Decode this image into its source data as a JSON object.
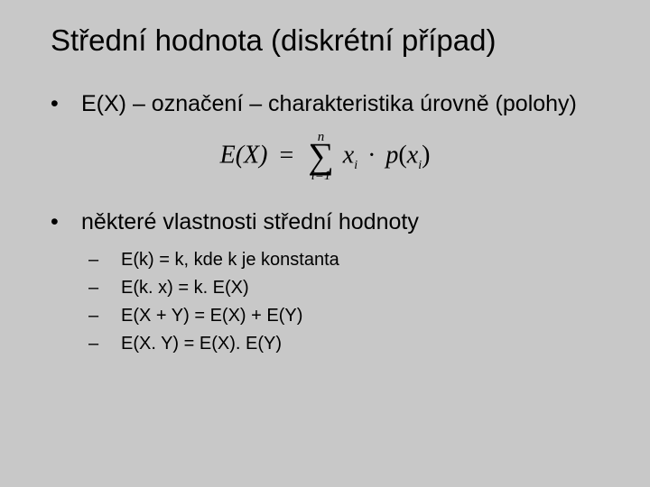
{
  "background_color": "#c8c8c8",
  "text_color": "#000000",
  "title": "Střední hodnota (diskrétní případ)",
  "title_fontsize": 33,
  "body_fontsize": 25,
  "sub_fontsize": 20,
  "bullets": [
    {
      "text": "E(X) – označení – charakteristika úrovně (polohy)"
    },
    {
      "text": "některé vlastnosti střední hodnoty"
    }
  ],
  "formula": {
    "left": "E(X)",
    "eq": "=",
    "sum_top": "n",
    "sum_symbol": "∑",
    "sum_bottom": "i=1",
    "term_x": "x",
    "term_x_sub": "i",
    "dot": "·",
    "term_p": "p",
    "paren_l": "(",
    "term_px": "x",
    "term_px_sub": "i",
    "paren_r": ")"
  },
  "sub_items": [
    "E(k) = k, kde k je konstanta",
    "E(k. x) = k. E(X)",
    "E(X + Y) = E(X) + E(Y)",
    "E(X. Y) = E(X). E(Y)"
  ]
}
